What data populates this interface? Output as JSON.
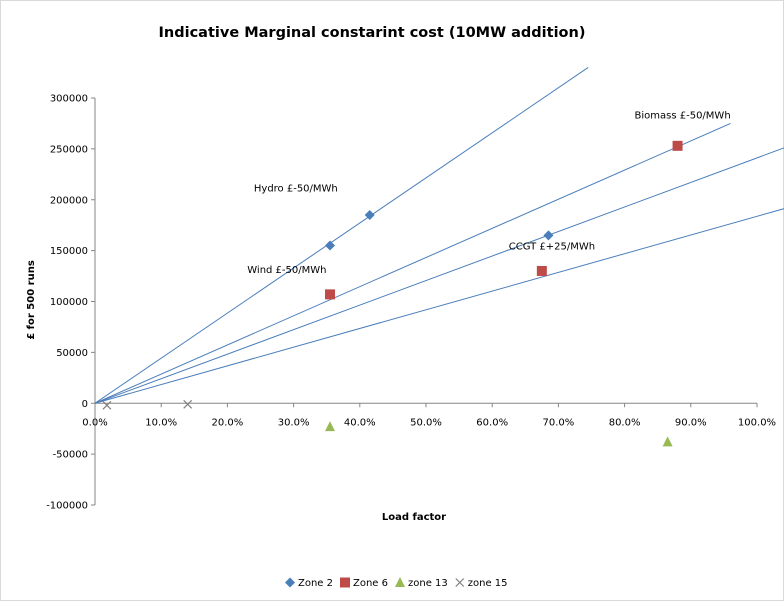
{
  "chart_data": {
    "type": "scatter",
    "title": "Indicative Marginal constarint cost (10MW addition)",
    "xlabel": "Load factor",
    "ylabel": "£ for 500 runs",
    "xlim": [
      0,
      1.0
    ],
    "ylim": [
      -100000,
      300000
    ],
    "x_ticks": [
      0,
      0.1,
      0.2,
      0.3,
      0.4,
      0.5,
      0.6,
      0.7,
      0.8,
      0.9,
      1.0
    ],
    "x_tick_labels": [
      "0.0%",
      "10.0%",
      "20.0%",
      "30.0%",
      "40.0%",
      "50.0%",
      "60.0%",
      "70.0%",
      "80.0%",
      "90.0%",
      "100.0%"
    ],
    "y_ticks": [
      -100000,
      -50000,
      0,
      50000,
      100000,
      150000,
      200000,
      250000,
      300000
    ],
    "y_tick_labels": [
      "-100000",
      "-50000",
      "0",
      "50000",
      "100000",
      "150000",
      "200000",
      "250000",
      "300000"
    ],
    "grid": false,
    "legend_position": "bottom",
    "series": [
      {
        "name": "Zone 2",
        "marker": "diamond",
        "color": "#4a7ebb",
        "points": [
          [
            0.355,
            155000
          ],
          [
            0.415,
            185000
          ],
          [
            0.685,
            165000
          ]
        ]
      },
      {
        "name": "Zone 6",
        "marker": "square",
        "color": "#be4b48",
        "points": [
          [
            0.355,
            107000
          ],
          [
            0.675,
            130000
          ],
          [
            0.88,
            253000
          ]
        ]
      },
      {
        "name": "zone 13",
        "marker": "triangle",
        "color": "#98b954",
        "points": [
          [
            0.355,
            -23000
          ],
          [
            0.865,
            -38000
          ]
        ]
      },
      {
        "name": "zone 15",
        "marker": "x",
        "color": "#7f7f7f",
        "points": [
          [
            0.018,
            -2000
          ],
          [
            0.14,
            -1000
          ]
        ]
      }
    ],
    "trendlines": [
      {
        "color": "#4a7ebb",
        "x": [
          0,
          0.745
        ],
        "y": [
          0,
          330000
        ]
      },
      {
        "color": "#4a7ebb",
        "x": [
          0,
          0.96
        ],
        "y": [
          0,
          275000
        ]
      },
      {
        "color": "#4a7ebb",
        "x": [
          0,
          1.045
        ],
        "y": [
          0,
          252000
        ]
      },
      {
        "color": "#4a7ebb",
        "x": [
          0,
          1.045
        ],
        "y": [
          0,
          192000
        ]
      }
    ],
    "annotations": [
      {
        "text": "Hydro   £-50/MWh",
        "x": 0.24,
        "y": 208000
      },
      {
        "text": "Wind   £-50/MWh",
        "x": 0.23,
        "y": 128000
      },
      {
        "text": "CCGT £+25/MWh",
        "x": 0.625,
        "y": 151000
      },
      {
        "text": "Biomass £-50/MWh",
        "x": 0.815,
        "y": 280000
      }
    ]
  }
}
